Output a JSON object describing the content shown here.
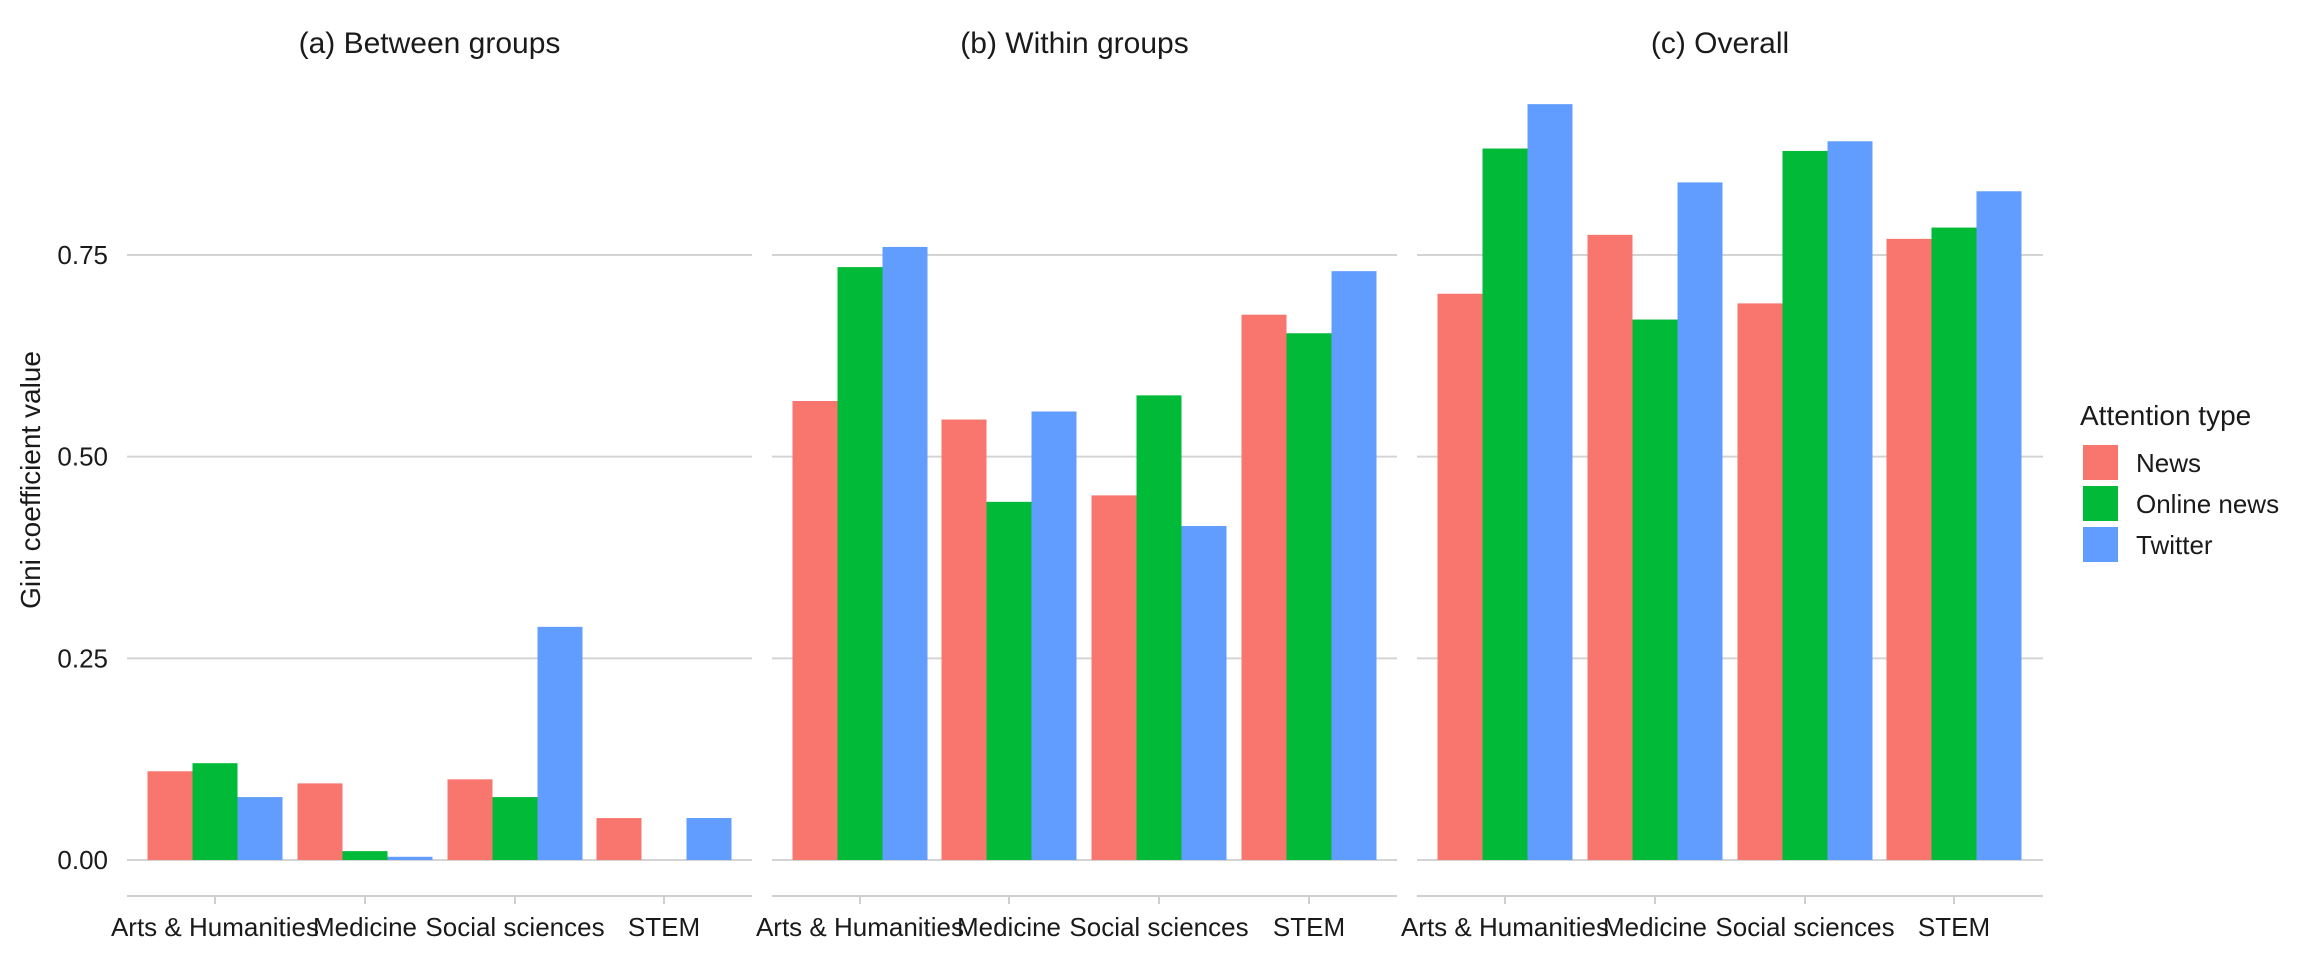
{
  "chart_data": {
    "type": "bar",
    "ylabel": "Gini coefficient value",
    "ylim": [
      0,
      0.95
    ],
    "yticks": [
      0.0,
      0.25,
      0.5,
      0.75
    ],
    "ytick_labels": [
      "0.00",
      "0.25",
      "0.50",
      "0.75"
    ],
    "grid": "horizontal",
    "categories": [
      "Arts & Humanities",
      "Medicine",
      "Social sciences",
      "STEM"
    ],
    "legend": {
      "title": "Attention type",
      "placement": "right",
      "entries": [
        "News",
        "Online news",
        "Twitter"
      ]
    },
    "colors": {
      "News": "#F8766D",
      "Online news": "#00BA38",
      "Twitter": "#619CFF"
    },
    "panels": [
      {
        "title": "(a) Between groups",
        "series": [
          {
            "name": "News",
            "values": [
              0.11,
              0.095,
              0.1,
              0.052
            ]
          },
          {
            "name": "Online news",
            "values": [
              0.12,
              0.011,
              0.078,
              0.0
            ]
          },
          {
            "name": "Twitter",
            "values": [
              0.078,
              0.004,
              0.289,
              0.052
            ]
          }
        ]
      },
      {
        "title": "(b) Within groups",
        "series": [
          {
            "name": "News",
            "values": [
              0.569,
              0.546,
              0.452,
              0.676
            ]
          },
          {
            "name": "Online news",
            "values": [
              0.735,
              0.444,
              0.576,
              0.653
            ]
          },
          {
            "name": "Twitter",
            "values": [
              0.76,
              0.556,
              0.414,
              0.73
            ]
          }
        ]
      },
      {
        "title": "(c) Overall",
        "series": [
          {
            "name": "News",
            "values": [
              0.702,
              0.775,
              0.69,
              0.77
            ]
          },
          {
            "name": "Online news",
            "values": [
              0.882,
              0.67,
              0.879,
              0.784
            ]
          },
          {
            "name": "Twitter",
            "values": [
              0.937,
              0.84,
              0.891,
              0.829
            ]
          }
        ]
      }
    ]
  }
}
